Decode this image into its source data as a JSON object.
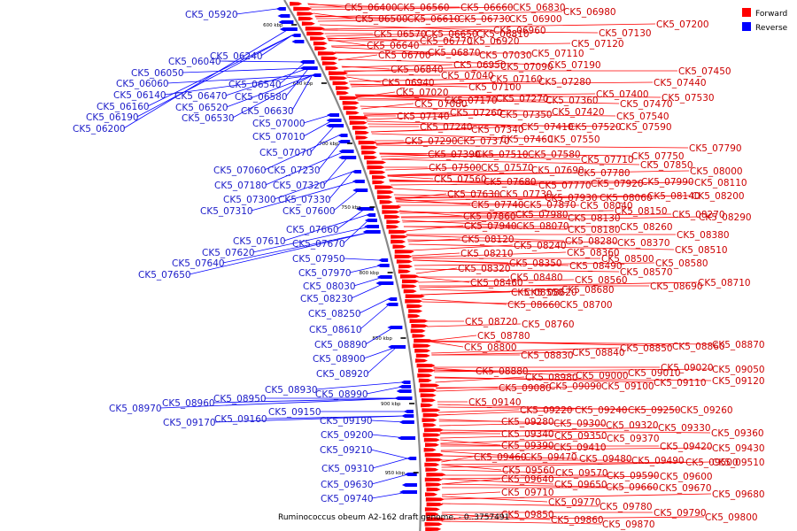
{
  "title": "Ruminococcus obeum A2-162 draft genome. - 0..3757491",
  "colors": {
    "forward": "#ff0000",
    "reverse": "#0000ff",
    "forward_label": "#cc0000",
    "reverse_label": "#1c1cc8",
    "backbone": "#888888"
  },
  "legend": [
    {
      "name": "Forward",
      "color": "#ff0000"
    },
    {
      "name": "Reverse",
      "color": "#0000ff"
    }
  ],
  "ticks": [
    "600 kbp",
    "650 kbp",
    "700 kbp",
    "750 kbp",
    "800 kbp",
    "850 kbp",
    "900 kbp",
    "950 kbp"
  ],
  "forward_labels": [
    "CK5_06400",
    "CK5_06560",
    "CK5_06660",
    "CK5_06830",
    "CK5_06980",
    "CK5_06500",
    "CK5_06610",
    "CK5_06730",
    "CK5_06900",
    "CK5_07200",
    "CK5_06960",
    "CK5_07130",
    "CK5_06570",
    "CK5_06650",
    "CK5_06810",
    "CK5_06640",
    "CK5_06770",
    "CK5_06920",
    "CK5_07120",
    "CK5_06700",
    "CK5_06870",
    "CK5_07030",
    "CK5_07110",
    "CK5_06950",
    "CK5_07090",
    "CK5_07190",
    "CK5_06840",
    "CK5_07040",
    "CK5_07160",
    "CK5_07280",
    "CK5_06940",
    "CK5_07100",
    "CK5_07450",
    "CK5_07440",
    "CK5_07020",
    "CK5_07170",
    "CK5_07270",
    "CK5_07360",
    "CK5_07400",
    "CK5_07080",
    "CK5_07470",
    "CK5_07530",
    "CK5_07140",
    "CK5_07260",
    "CK5_07350",
    "CK5_07420",
    "CK5_07540",
    "CK5_07240",
    "CK5_07340",
    "CK5_07410",
    "CK5_07520",
    "CK5_07590",
    "CK5_07290",
    "CK5_07370",
    "CK5_07460",
    "CK5_07550",
    "CK5_07790",
    "CK5_07390",
    "CK5_07510",
    "CK5_07580",
    "CK5_07710",
    "CK5_07750",
    "CK5_07500",
    "CK5_07570",
    "CK5_07690",
    "CK5_07850",
    "CK5_07560",
    "CK5_07680",
    "CK5_07780",
    "CK5_08000",
    "CK5_07770",
    "CK5_07920",
    "CK5_07990",
    "CK5_08110",
    "CK5_07630",
    "CK5_07730",
    "CK5_07930",
    "CK5_08060",
    "CK5_08140",
    "CK5_08200",
    "CK5_07740",
    "CK5_07870",
    "CK5_08040",
    "CK5_08150",
    "CK5_08290",
    "CK5_07860",
    "CK5_07980",
    "CK5_08130",
    "CK5_08270",
    "CK5_07940",
    "CK5_08070",
    "CK5_08180",
    "CK5_08260",
    "CK5_08120",
    "CK5_08240",
    "CK5_08280",
    "CK5_08370",
    "CK5_08380",
    "CK5_08210",
    "CK5_08360",
    "CK5_08510",
    "CK5_08350",
    "CK5_08500",
    "CK5_08580",
    "CK5_08320",
    "CK5_08490",
    "CK5_08570",
    "CK5_08480",
    "CK5_08560",
    "CK5_08710",
    "CK5_08460",
    "CK5_08620",
    "CK5_08690",
    "CK5_08550",
    "CK5_08680",
    "CK5_08660",
    "CK5_08700",
    "CK5_08720",
    "CK5_08760",
    "CK5_08780",
    "CK5_08800",
    "CK5_08870",
    "CK5_08830",
    "CK5_08840",
    "CK5_08850",
    "CK5_08860",
    "CK5_08880",
    "CK5_09020",
    "CK5_09050",
    "CK5_08980",
    "CK5_09000",
    "CK5_09010",
    "CK5_09080",
    "CK5_09090",
    "CK5_09100",
    "CK5_09110",
    "CK5_09120",
    "CK5_09140",
    "CK5_09220",
    "CK5_09240",
    "CK5_09250",
    "CK5_09260",
    "CK5_09280",
    "CK5_09300",
    "CK5_09330",
    "CK5_09320",
    "CK5_09360",
    "CK5_09340",
    "CK5_09350",
    "CK5_09370",
    "CK5_09390",
    "CK5_09410",
    "CK5_09420",
    "CK5_09430",
    "CK5_09460",
    "CK5_09470",
    "CK5_09480",
    "CK5_09490",
    "CK5_09500",
    "CK5_09510",
    "CK5_09560",
    "CK5_09570",
    "CK5_09590",
    "CK5_09600",
    "CK5_09640",
    "CK5_09650",
    "CK5_09660",
    "CK5_09670",
    "CK5_09710",
    "CK5_09680",
    "CK5_09770",
    "CK5_09780",
    "CK5_09790",
    "CK5_09800",
    "CK5_09850",
    "CK5_09860",
    "CK5_09870"
  ],
  "reverse_labels": [
    "CK5_05920",
    "CK5_06040",
    "CK5_06050",
    "CK5_06060",
    "CK5_06140",
    "CK5_06160",
    "CK5_06190",
    "CK5_06200",
    "CK5_06240",
    "CK5_06470",
    "CK5_06520",
    "CK5_06530",
    "CK5_06540",
    "CK5_06580",
    "CK5_06630",
    "CK5_07000",
    "CK5_07010",
    "CK5_07070",
    "CK5_07060",
    "CK5_07230",
    "CK5_07180",
    "CK5_07320",
    "CK5_07300",
    "CK5_07330",
    "CK5_07310",
    "CK5_07600",
    "CK5_07660",
    "CK5_07610",
    "CK5_07670",
    "CK5_07620",
    "CK5_07640",
    "CK5_07650",
    "CK5_07950",
    "CK5_07970",
    "CK5_08030",
    "CK5_08230",
    "CK5_08250",
    "CK5_08610",
    "CK5_08890",
    "CK5_08900",
    "CK5_08920",
    "CK5_08930",
    "CK5_08990",
    "CK5_08970",
    "CK5_08960",
    "CK5_08950",
    "CK5_09150",
    "CK5_09170",
    "CK5_09160",
    "CK5_09190",
    "CK5_09200",
    "CK5_09210",
    "CK5_09310",
    "CK5_09630",
    "CK5_09740"
  ]
}
